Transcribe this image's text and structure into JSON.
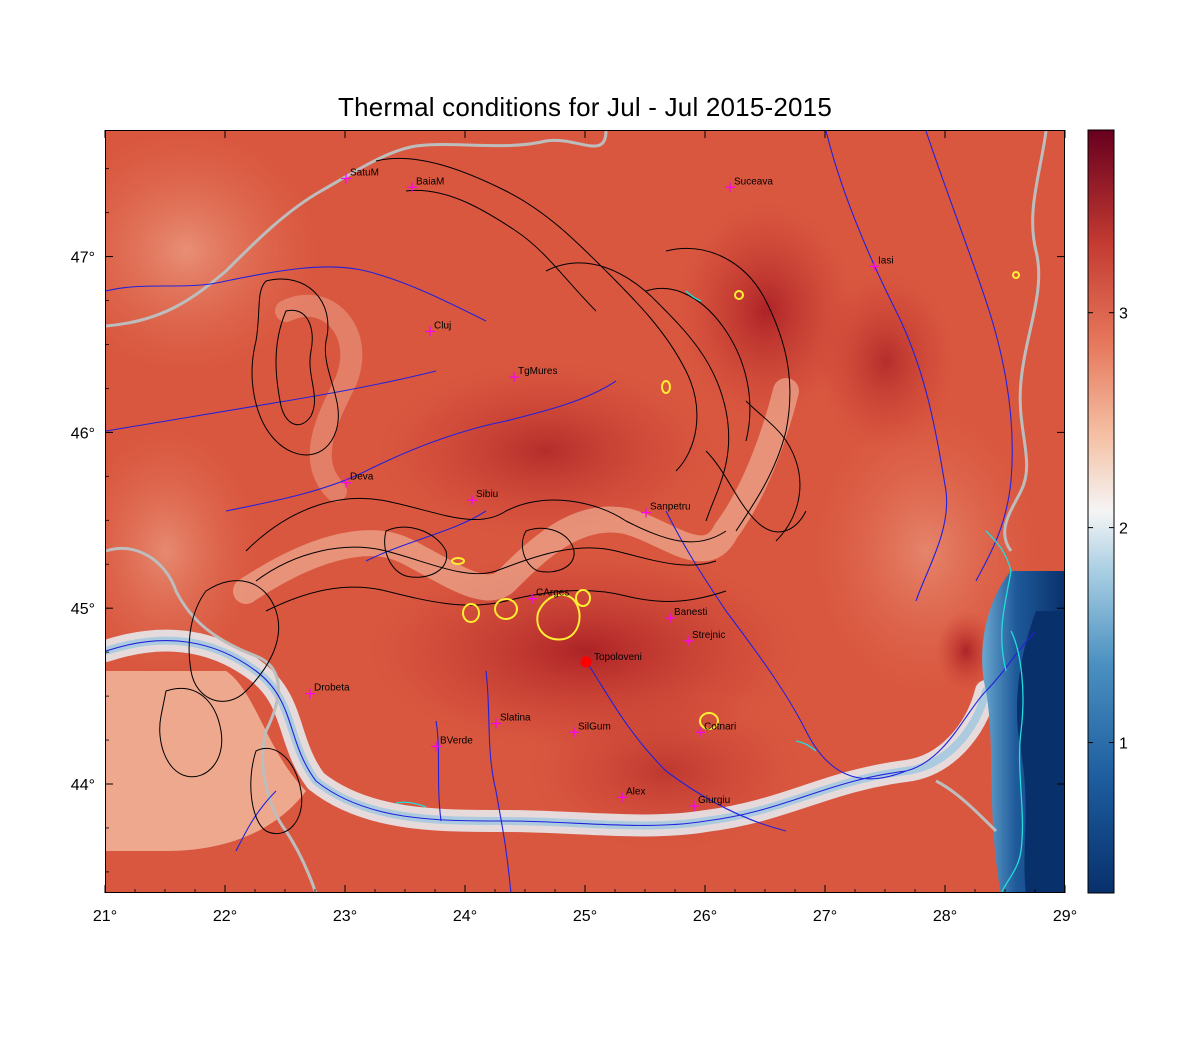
{
  "title": "Thermal conditions for Jul - Jul  2015-2015",
  "x_ticks": [
    {
      "value": 21,
      "label": "21°"
    },
    {
      "value": 22,
      "label": "22°"
    },
    {
      "value": 23,
      "label": "23°"
    },
    {
      "value": 24,
      "label": "24°"
    },
    {
      "value": 25,
      "label": "25°"
    },
    {
      "value": 26,
      "label": "26°"
    },
    {
      "value": 27,
      "label": "27°"
    },
    {
      "value": 28,
      "label": "28°"
    },
    {
      "value": 29,
      "label": "29°"
    }
  ],
  "y_ticks": [
    {
      "value": 47,
      "label": "47°"
    },
    {
      "value": 46,
      "label": "46°"
    },
    {
      "value": 45,
      "label": "45°"
    },
    {
      "value": 44,
      "label": "44°"
    }
  ],
  "colorbar": {
    "min": 0.3,
    "max": 3.85,
    "ticks": [
      {
        "value": 1,
        "label": "1"
      },
      {
        "value": 2,
        "label": "2"
      },
      {
        "value": 3,
        "label": "3"
      }
    ]
  },
  "cities": [
    {
      "name": "SatuM",
      "lon": 23.0,
      "lat": 47.45
    },
    {
      "name": "BaiaM",
      "lon": 23.55,
      "lat": 47.4
    },
    {
      "name": "Suceava",
      "lon": 26.2,
      "lat": 47.4
    },
    {
      "name": "Iasi",
      "lon": 27.4,
      "lat": 46.95
    },
    {
      "name": "Cluj",
      "lon": 23.7,
      "lat": 46.58
    },
    {
      "name": "TgMures",
      "lon": 24.4,
      "lat": 46.32
    },
    {
      "name": "Deva",
      "lon": 23.0,
      "lat": 45.72
    },
    {
      "name": "Sibiu",
      "lon": 24.05,
      "lat": 45.62
    },
    {
      "name": "Sanpetru",
      "lon": 25.5,
      "lat": 45.55
    },
    {
      "name": "CArges",
      "lon": 24.55,
      "lat": 45.06
    },
    {
      "name": "Banesti",
      "lon": 25.7,
      "lat": 44.95
    },
    {
      "name": "Strejnic",
      "lon": 25.85,
      "lat": 44.82
    },
    {
      "name": "Drobeta",
      "lon": 22.7,
      "lat": 44.52
    },
    {
      "name": "Slatina",
      "lon": 24.25,
      "lat": 44.35
    },
    {
      "name": "SilGum",
      "lon": 24.9,
      "lat": 44.3
    },
    {
      "name": "Cotnari",
      "lon": 25.95,
      "lat": 44.3
    },
    {
      "name": "BVerde",
      "lon": 23.75,
      "lat": 44.22
    },
    {
      "name": "Alex",
      "lon": 25.3,
      "lat": 43.93
    },
    {
      "name": "Giurgiu",
      "lon": 25.9,
      "lat": 43.88
    }
  ],
  "highlight_site": {
    "name": "Topoloveni",
    "lon": 25.0,
    "lat": 44.7,
    "color": "#ff0000"
  },
  "colors": {
    "marker": "#ff00ff",
    "rivers": "#2222dd",
    "borders": "#b8b8b8",
    "contours": "#000000",
    "threshold_contour": "#ffee33",
    "water_edge": "#22dddd"
  }
}
